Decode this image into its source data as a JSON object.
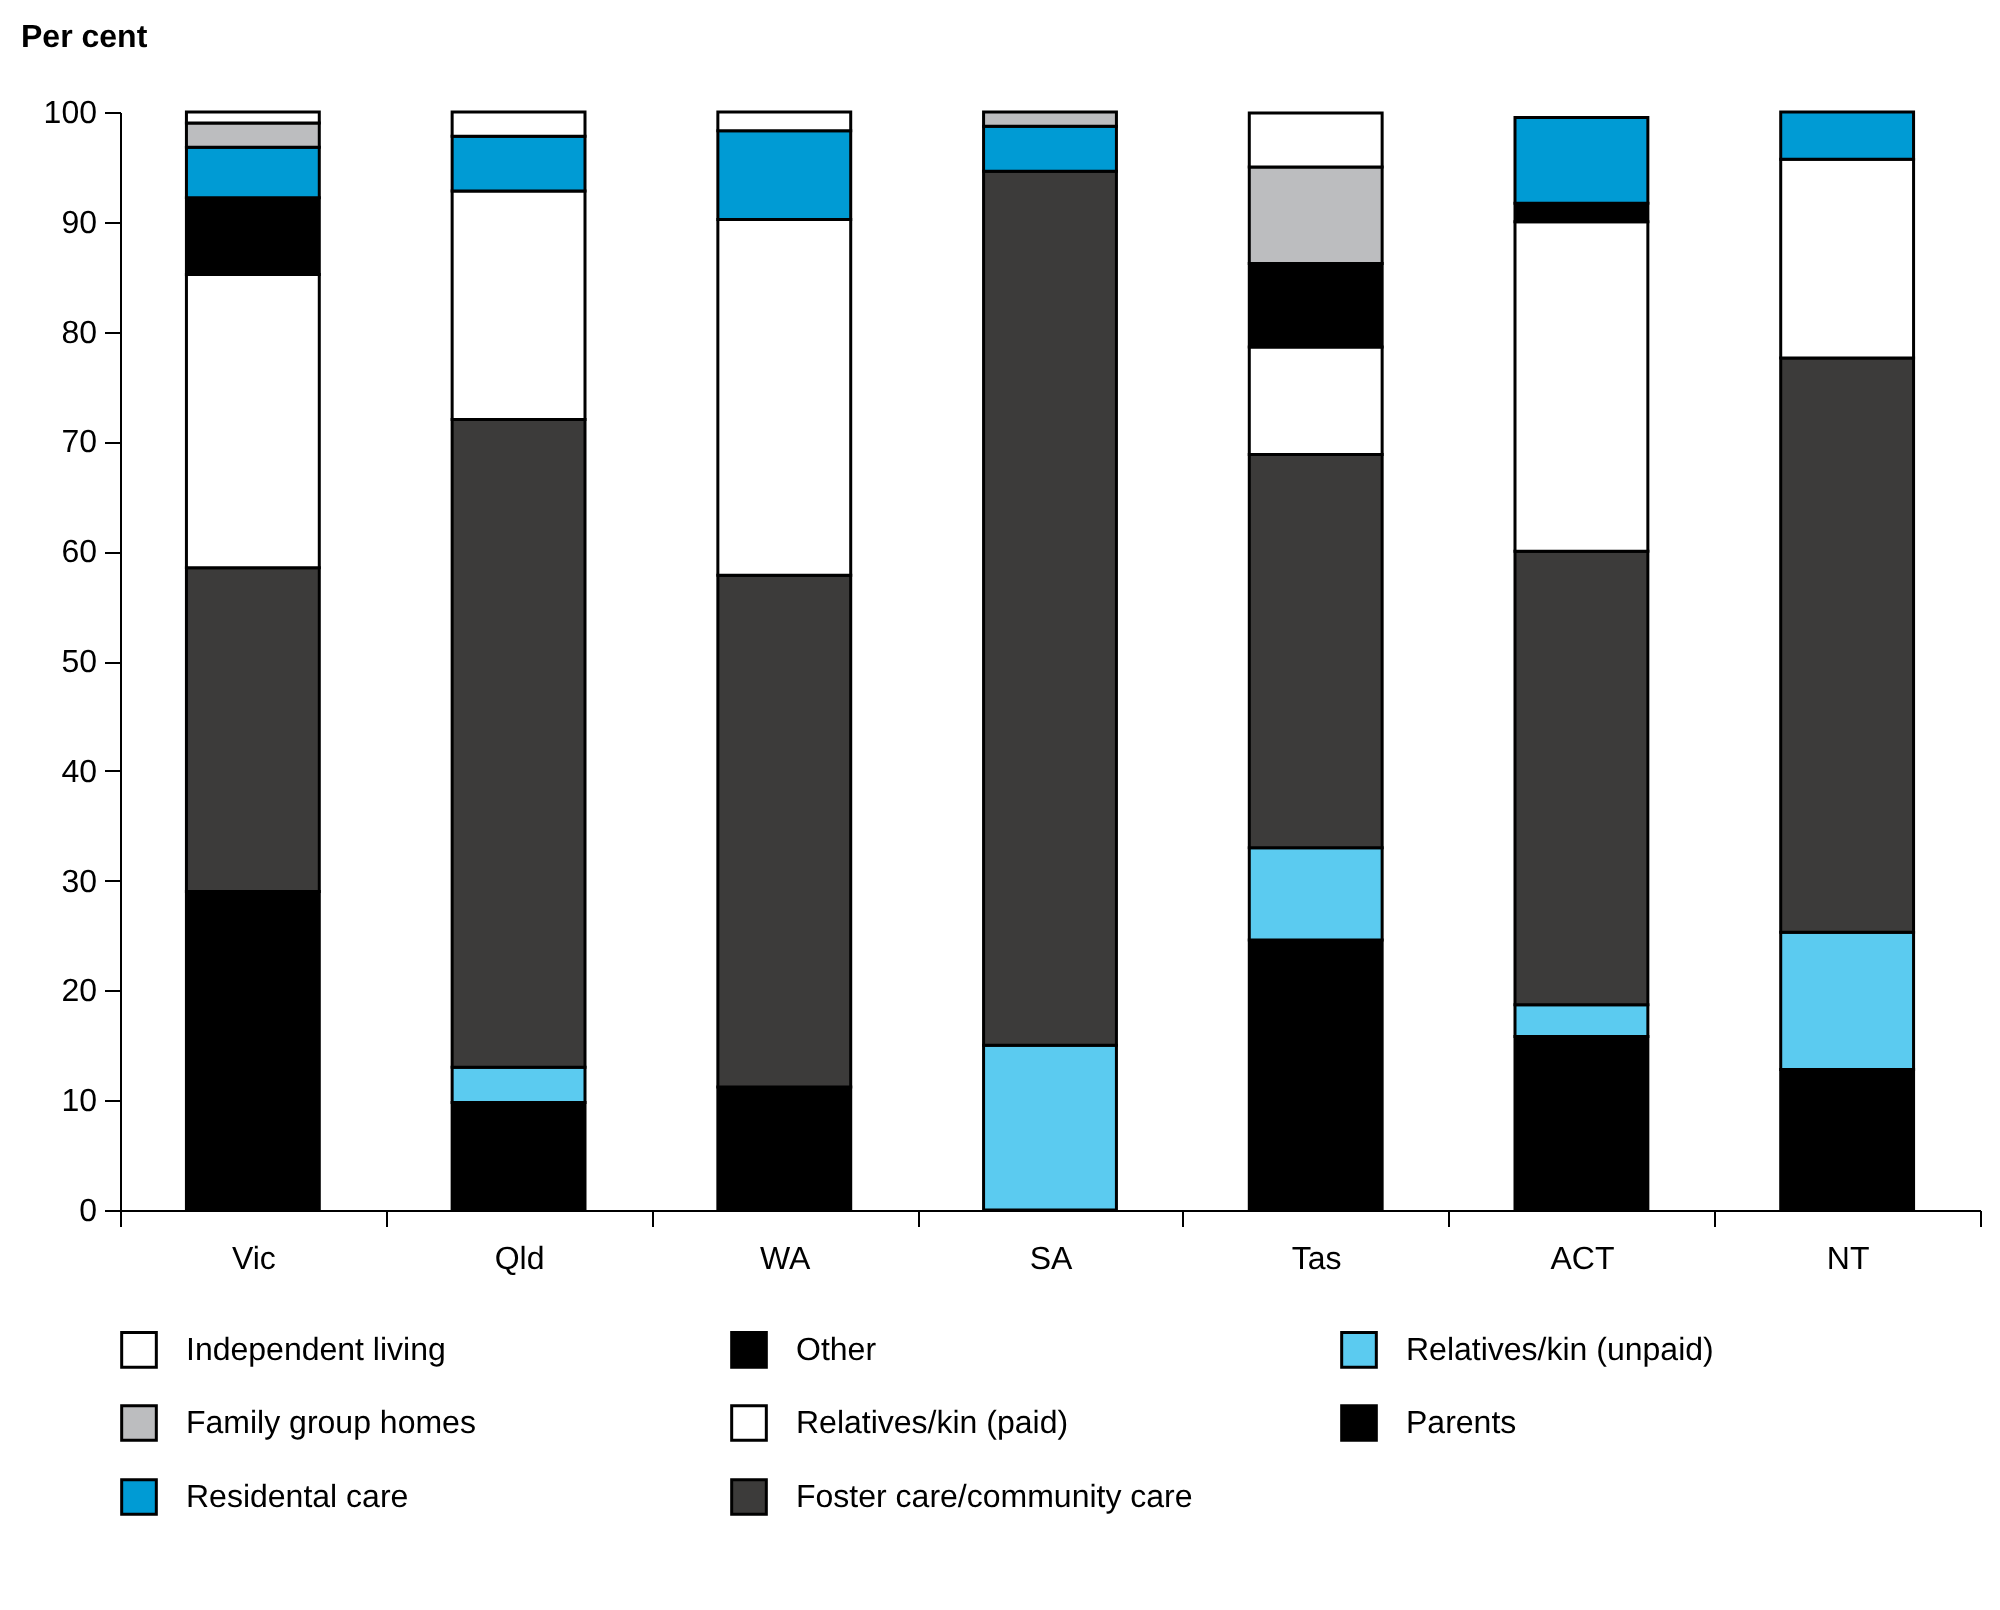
{
  "chart_data": {
    "type": "bar",
    "stacked": true,
    "ylabel": "Per cent",
    "categories": [
      "Vic",
      "Qld",
      "WA",
      "SA",
      "Tas",
      "ACT",
      "NT"
    ],
    "ylim": [
      0,
      100
    ],
    "yticks": [
      0,
      10,
      20,
      30,
      40,
      50,
      60,
      70,
      80,
      90,
      100
    ],
    "grid": false,
    "legend": "bottom",
    "series": [
      {
        "name": "Parents",
        "color": "#000000",
        "values": [
          29,
          9.8,
          11.2,
          0,
          24.6,
          15.8,
          12.8
        ]
      },
      {
        "name": "Relatives/kin (unpaid)",
        "color": "#5bcbf0",
        "values": [
          0,
          3.2,
          0,
          15,
          8.4,
          2.9,
          12.5
        ]
      },
      {
        "name": "Foster care/community care",
        "color": "#3c3b3a",
        "values": [
          29.5,
          59,
          46.6,
          79.6,
          35.8,
          41.3,
          52.3
        ]
      },
      {
        "name": "Relatives/kin (paid)",
        "color": "#ffffff",
        "values": [
          26.7,
          20.8,
          32.4,
          0,
          9.8,
          30,
          18.1
        ]
      },
      {
        "name": "Other",
        "color": "#000000",
        "values": [
          7,
          0,
          0,
          0,
          7.6,
          1.7,
          0
        ]
      },
      {
        "name": "Residental care",
        "color": "#009bd4",
        "values": [
          4.6,
          5,
          8.1,
          4.1,
          0,
          7.8,
          4.3
        ]
      },
      {
        "name": "Family group homes",
        "color": "#bcbdbf",
        "values": [
          2.2,
          0,
          0,
          1.3,
          8.8,
          0,
          0
        ]
      },
      {
        "name": "Independent living",
        "color": "#ffffff",
        "values": [
          1,
          2.2,
          1.7,
          0,
          4.9,
          0,
          0
        ]
      }
    ]
  }
}
